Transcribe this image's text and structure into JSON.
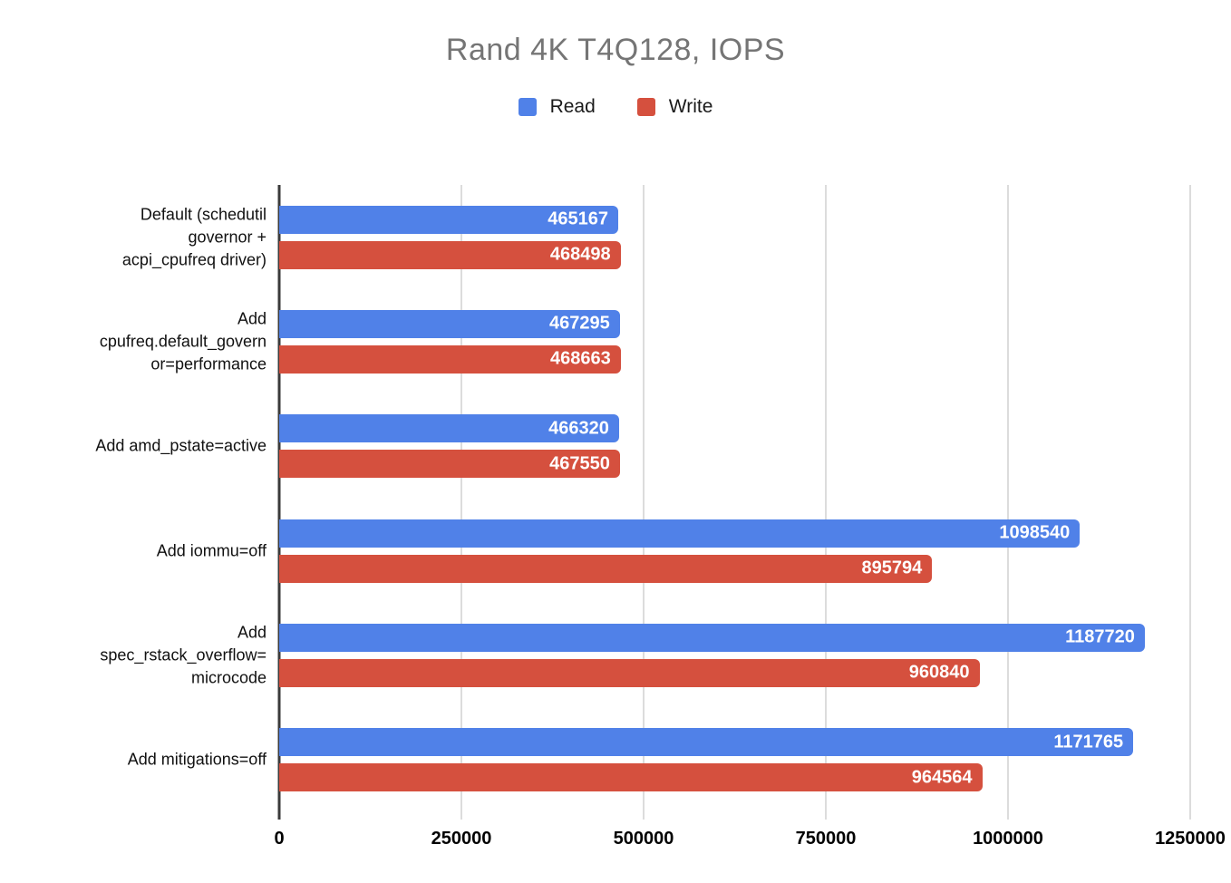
{
  "chart_data": {
    "type": "bar",
    "orientation": "horizontal",
    "title": "Rand 4K T4Q128, IOPS",
    "title_color": "#757575",
    "xlabel": "",
    "ylabel": "",
    "xlim": [
      0,
      1250000
    ],
    "xticks": [
      0,
      250000,
      500000,
      750000,
      1000000,
      1250000
    ],
    "grid": true,
    "legend_position": "top",
    "value_labels": "inside-end",
    "categories": [
      "Default (schedutil\ngovernor +\nacpi_cpufreq driver)",
      "Add\ncpufreq.default_govern\nor=performance",
      "Add amd_pstate=active",
      "Add iommu=off",
      "Add\nspec_rstack_overflow=\nmicrocode",
      "Add mitigations=off"
    ],
    "series": [
      {
        "name": "Read",
        "color": "#5081e8",
        "values": [
          465167,
          467295,
          466320,
          1098540,
          1187720,
          1171765
        ]
      },
      {
        "name": "Write",
        "color": "#d5503e",
        "values": [
          468498,
          468663,
          467550,
          895794,
          960840,
          964564
        ]
      }
    ],
    "colors": {
      "gridline": "#dcdcdc",
      "axis_line": "#3b3b3b",
      "bar_value_text": "#ffffff",
      "tick_label_text": "#000000",
      "category_label_text": "#111111"
    }
  }
}
